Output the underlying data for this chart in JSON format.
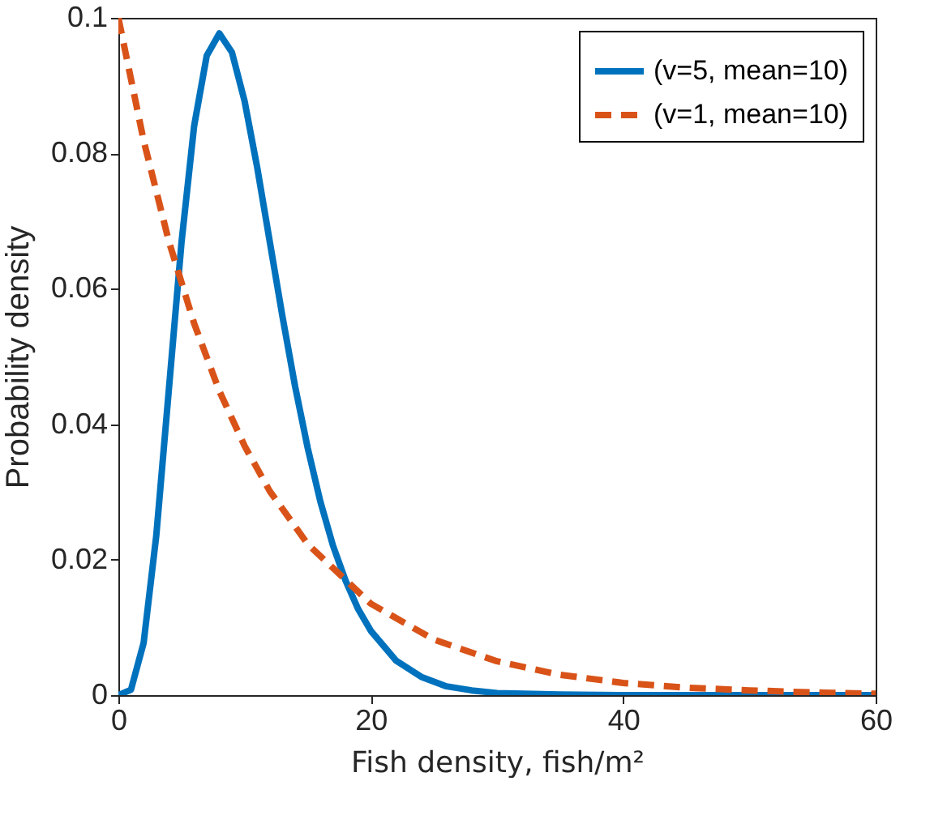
{
  "chart_data": {
    "type": "line",
    "xlabel": "Fish density, fish/m²",
    "ylabel": "Probability density",
    "xlim": [
      0,
      60
    ],
    "xticks": [
      0,
      20,
      40,
      60
    ],
    "ylim": [
      0,
      0.1
    ],
    "yticks": [
      0,
      0.02,
      0.04,
      0.06,
      0.08,
      0.1
    ],
    "grid": false,
    "legend": "top right",
    "marker": "none",
    "series": [
      {
        "name": "(v=5, mean=10)",
        "color": "#0072bd",
        "line_style": "solid",
        "x": [
          0,
          1,
          2,
          3,
          4,
          5,
          6,
          7,
          8,
          9,
          10,
          11,
          12,
          13,
          14,
          15,
          16,
          17,
          18,
          19,
          20,
          22,
          24,
          26,
          28,
          30,
          35,
          40,
          50,
          60
        ],
        "values": [
          0,
          0.0008,
          0.0077,
          0.0235,
          0.0451,
          0.0668,
          0.084,
          0.0944,
          0.0977,
          0.0949,
          0.0877,
          0.0779,
          0.0669,
          0.0559,
          0.0456,
          0.0365,
          0.0286,
          0.0221,
          0.0169,
          0.0127,
          0.0095,
          0.0051,
          0.0027,
          0.0013,
          0.0007,
          0.0003,
          0.0001,
          0,
          0,
          0
        ]
      },
      {
        "name": "(v=1, mean=10)",
        "color": "#d95319",
        "line_style": "dashed",
        "x": [
          0,
          2,
          4,
          6,
          8,
          10,
          12,
          15,
          20,
          25,
          30,
          35,
          40,
          45,
          50,
          55,
          60
        ],
        "values": [
          0.1,
          0.0819,
          0.067,
          0.0549,
          0.0449,
          0.0368,
          0.0301,
          0.0223,
          0.0135,
          0.0082,
          0.005,
          0.003,
          0.0018,
          0.0011,
          0.0007,
          0.0004,
          0.0002
        ]
      }
    ]
  }
}
